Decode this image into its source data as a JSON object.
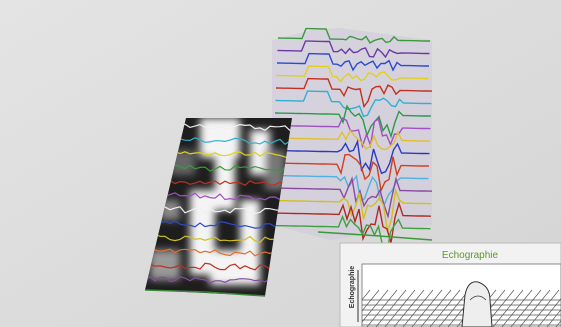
{
  "inset": {
    "title": "Echographie",
    "axis_label": "Echographie"
  }
}
